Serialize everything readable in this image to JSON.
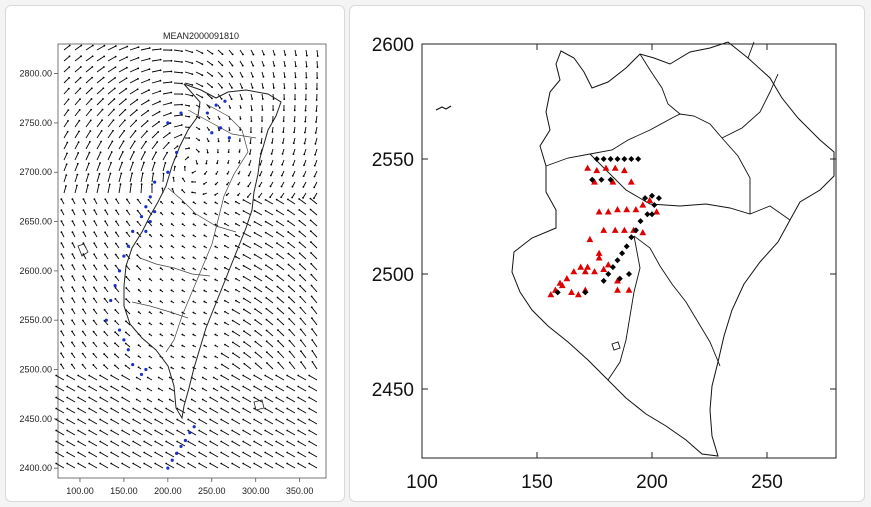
{
  "left_figure": {
    "title": "MEAN2000091810",
    "x_ticks": [
      "100.00",
      "150.00",
      "200.00",
      "250.00",
      "300.00",
      "350.00"
    ],
    "y_ticks": [
      "2400.00",
      "2450.00",
      "2500.00",
      "2550.00",
      "2600.00",
      "2650.00",
      "2700.00",
      "2750.00",
      "2800.00"
    ],
    "x_range": [
      75,
      380
    ],
    "y_range": [
      2390,
      2830
    ],
    "arrow_color": "#000000",
    "station_color": "#1a2fcc"
  },
  "right_figure": {
    "x_ticks": [
      "100",
      "150",
      "200",
      "250"
    ],
    "y_ticks": [
      "2450",
      "2500",
      "2550",
      "2600"
    ],
    "x_range": [
      100,
      280
    ],
    "y_range": [
      2420,
      2600
    ],
    "triangle_color": "#e00000",
    "diamond_color": "#000000"
  },
  "chart_data": [
    {
      "type": "scatter",
      "title": "MEAN2000091810",
      "description_free": true,
      "xlim": [
        75,
        380
      ],
      "ylim": [
        2390,
        2830
      ],
      "series": [
        {
          "x": [
            200,
            205,
            210,
            215,
            220,
            225,
            230,
            245,
            255,
            265,
            200,
            215,
            185,
            180,
            175,
            170,
            160,
            155,
            150,
            145,
            140,
            135,
            130,
            145,
            150,
            155,
            175,
            180,
            185,
            200,
            210,
            250,
            260,
            270,
            175,
            170,
            160
          ],
          "y": [
            2400,
            2408,
            2415,
            2422,
            2428,
            2436,
            2442,
            2760,
            2768,
            2772,
            2750,
            2760,
            2690,
            2675,
            2665,
            2655,
            2640,
            2625,
            2615,
            2600,
            2585,
            2570,
            2550,
            2540,
            2530,
            2520,
            2640,
            2650,
            2660,
            2700,
            2720,
            2740,
            2745,
            2735,
            2500,
            2495,
            2505
          ]
        }
      ]
    },
    {
      "type": "scatter",
      "xlim": [
        100,
        280
      ],
      "ylim": [
        2420,
        2600
      ],
      "series": [
        {
          "marker": "triangle",
          "x": [
            172,
            176,
            180,
            184,
            188,
            175,
            183,
            191,
            177,
            181,
            185,
            189,
            193,
            196,
            199,
            202,
            179,
            184,
            188,
            192,
            196,
            173,
            177,
            181,
            185,
            171,
            175,
            179,
            169,
            172,
            166,
            163,
            160,
            158,
            156,
            161,
            165,
            168,
            171,
            185,
            190,
            177
          ],
          "y": [
            2546,
            2545,
            2546,
            2546,
            2545,
            2540,
            2540,
            2540,
            2527,
            2527,
            2528,
            2528,
            2528,
            2530,
            2532,
            2527,
            2519,
            2519,
            2519,
            2519,
            2518,
            2515,
            2509,
            2504,
            2497,
            2501,
            2501,
            2502,
            2503,
            2503,
            2501,
            2498,
            2496,
            2493,
            2491,
            2495,
            2492,
            2491,
            2493,
            2493,
            2493,
            2507
          ]
        },
        {
          "marker": "diamond",
          "x": [
            176,
            179,
            182,
            185,
            188,
            191,
            194,
            174,
            178,
            182,
            197,
            200,
            203,
            201,
            198,
            195,
            193,
            191,
            189,
            187,
            185,
            183,
            181,
            179,
            186,
            190,
            159,
            171,
            200
          ],
          "y": [
            2550,
            2550,
            2550,
            2550,
            2550,
            2550,
            2550,
            2541,
            2541,
            2541,
            2533,
            2534,
            2533,
            2530,
            2526,
            2523,
            2519,
            2516,
            2512,
            2509,
            2506,
            2503,
            2500,
            2497,
            2498,
            2500,
            2492,
            2492,
            2526
          ]
        }
      ]
    }
  ]
}
